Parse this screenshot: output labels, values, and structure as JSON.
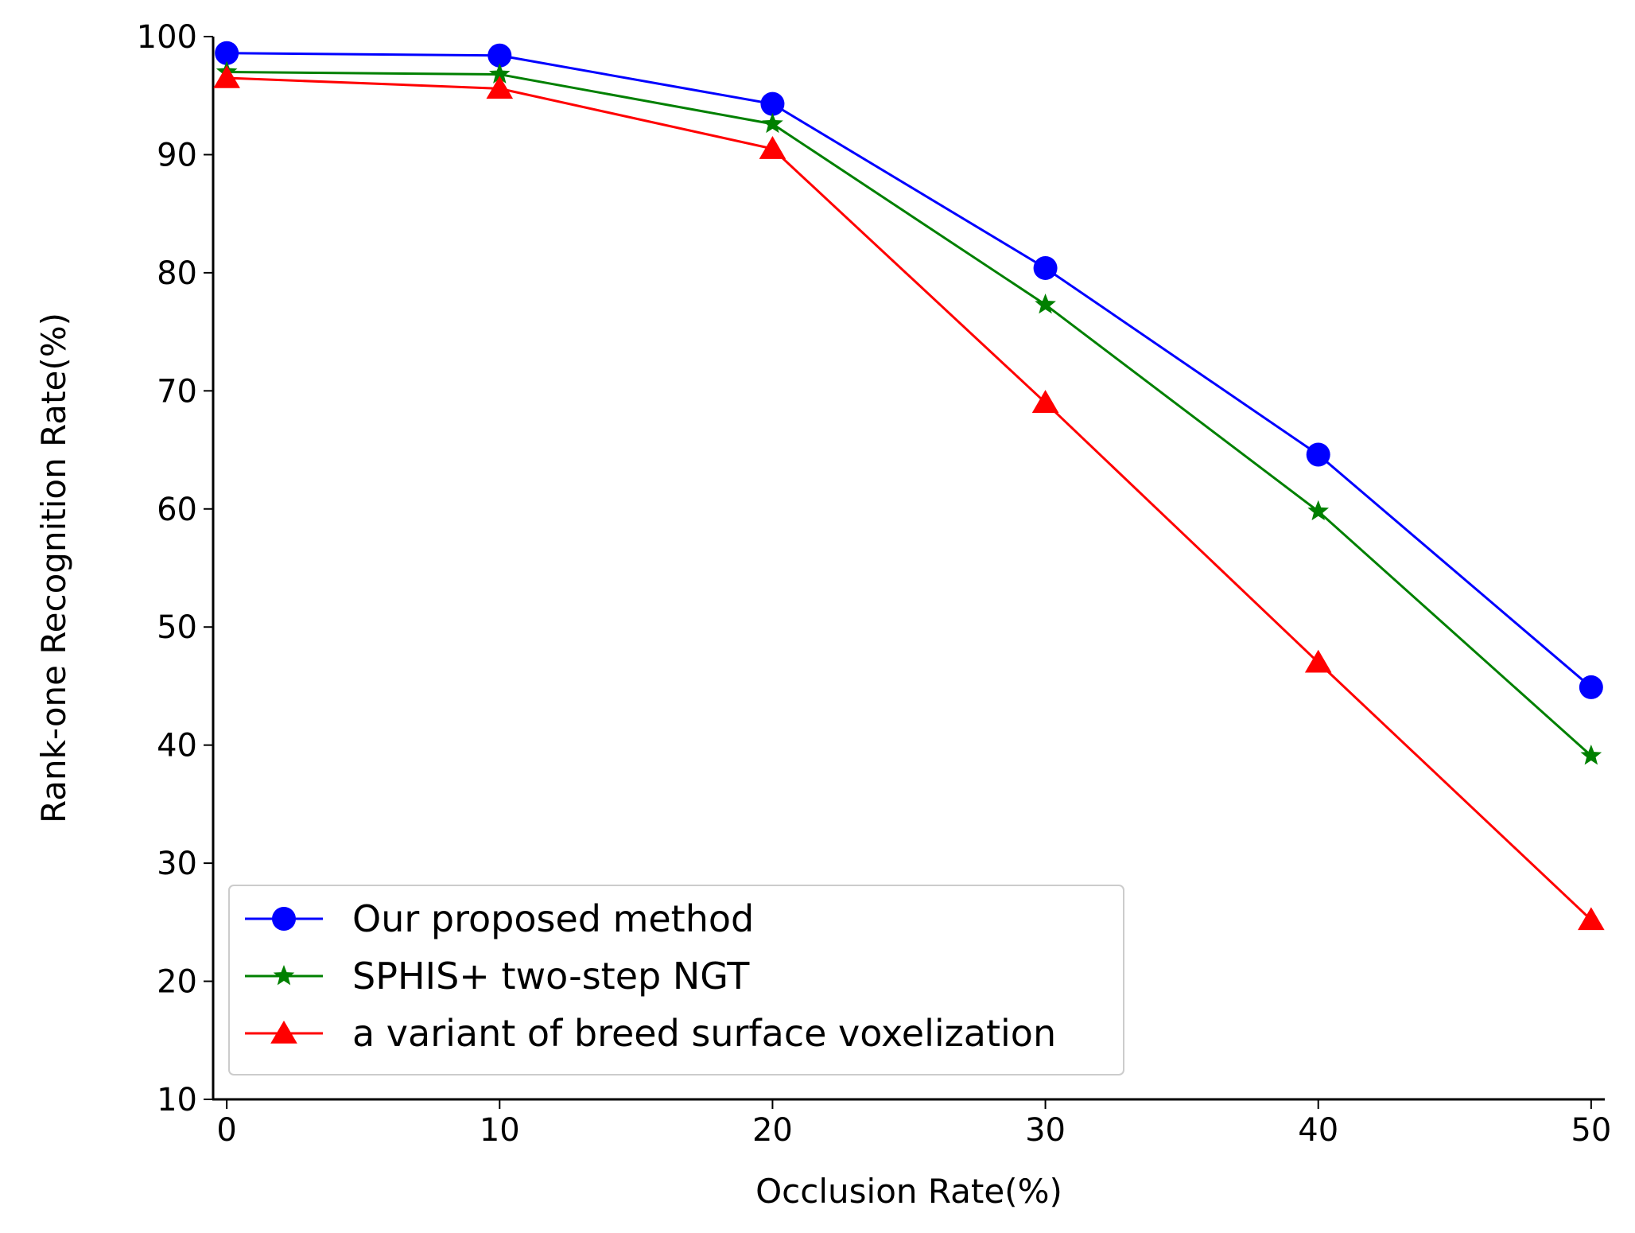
{
  "chart_data": {
    "type": "line",
    "title": "",
    "xlabel": "Occlusion Rate(%)",
    "ylabel": "Rank-one Recognition Rate(%)",
    "x": [
      0,
      10,
      20,
      30,
      40,
      50
    ],
    "xlim": [
      -0.5,
      50.5
    ],
    "ylim": [
      10,
      100
    ],
    "xticks": [
      0,
      10,
      20,
      30,
      40,
      50
    ],
    "yticks": [
      10,
      20,
      30,
      40,
      50,
      60,
      70,
      80,
      90,
      100
    ],
    "grid": false,
    "legend_position": "lower-left",
    "series": [
      {
        "name": "Our proposed method",
        "color": "#0000ff",
        "marker": "circle",
        "values": [
          98.6,
          98.4,
          94.3,
          80.4,
          64.6,
          44.9
        ]
      },
      {
        "name": "SPHIS+ two-step NGT",
        "color": "#008000",
        "marker": "star",
        "values": [
          97.0,
          96.8,
          92.6,
          77.3,
          59.8,
          39.1
        ]
      },
      {
        "name": "a variant of breed surface voxelization",
        "color": "#ff0000",
        "marker": "triangle",
        "values": [
          96.5,
          95.6,
          90.5,
          69.0,
          47.0,
          25.2
        ]
      }
    ]
  }
}
